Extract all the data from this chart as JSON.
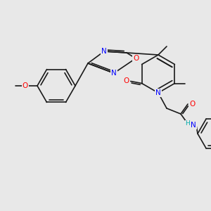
{
  "background_color": "#e8e8e8",
  "bond_color": "#1a1a1a",
  "bond_width": 1.2,
  "atom_colors": {
    "N": "#0000ff",
    "O": "#ff0000",
    "NH": "#00aaaa",
    "C": "#1a1a1a"
  },
  "font_size": 7.5
}
